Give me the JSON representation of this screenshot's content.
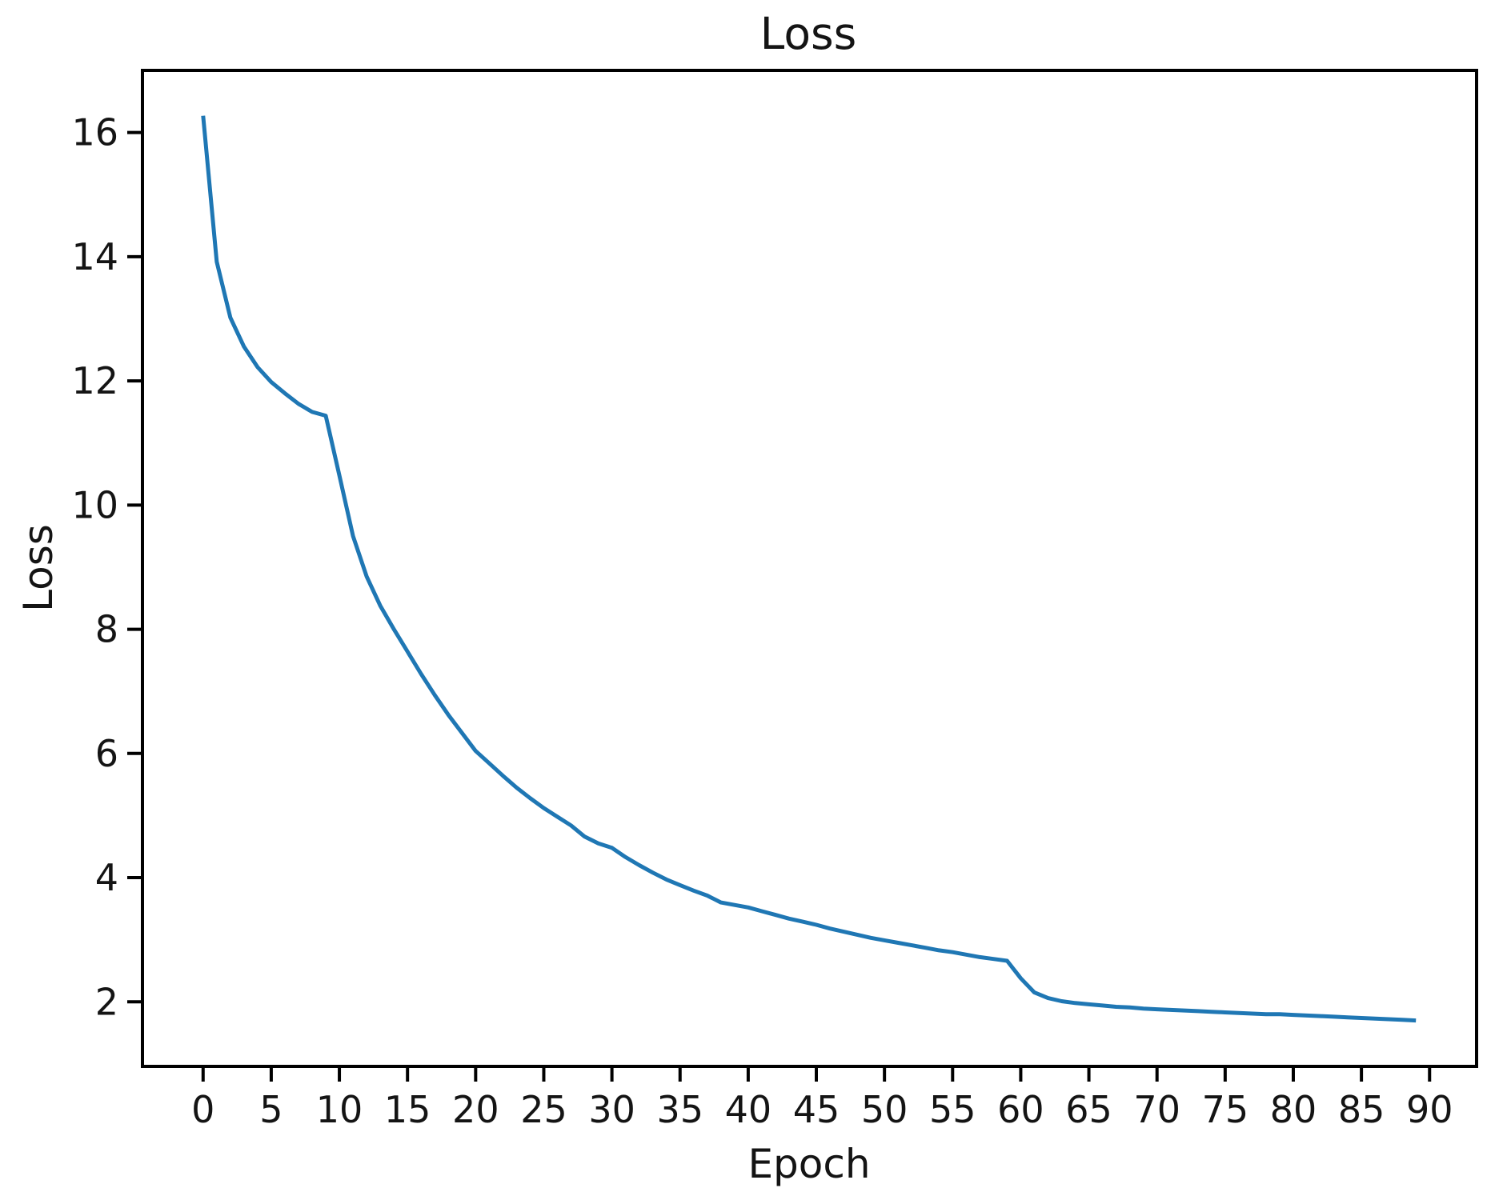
{
  "figure": {
    "background": "#ffffff",
    "text_color": "#141414",
    "spine_color": "#000000"
  },
  "chart_data": {
    "type": "line",
    "title": "Loss",
    "xlabel": "Epoch",
    "ylabel": "Loss",
    "xticks": [
      0,
      5,
      10,
      15,
      20,
      25,
      30,
      35,
      40,
      45,
      50,
      55,
      60,
      65,
      70,
      75,
      80,
      85,
      90
    ],
    "yticks": [
      2,
      4,
      6,
      8,
      10,
      12,
      14,
      16
    ],
    "xlim": [
      -4.45,
      93.45
    ],
    "ylim": [
      0.96,
      17.0
    ],
    "grid": false,
    "legend": "none",
    "series": [
      {
        "name": "Loss",
        "color": "#1f77b4",
        "x": [
          0,
          1,
          2,
          3,
          4,
          5,
          6,
          7,
          8,
          9,
          10,
          11,
          12,
          13,
          14,
          15,
          16,
          17,
          18,
          19,
          20,
          21,
          22,
          23,
          24,
          25,
          26,
          27,
          28,
          29,
          30,
          31,
          32,
          33,
          34,
          35,
          36,
          37,
          38,
          39,
          40,
          41,
          42,
          43,
          44,
          45,
          46,
          47,
          48,
          49,
          50,
          51,
          52,
          53,
          54,
          55,
          56,
          57,
          58,
          59,
          60,
          61,
          62,
          63,
          64,
          65,
          66,
          67,
          68,
          69,
          70,
          71,
          72,
          73,
          74,
          75,
          76,
          77,
          78,
          79,
          80,
          81,
          82,
          83,
          84,
          85,
          86,
          87,
          88,
          89
        ],
        "y": [
          16.27,
          13.92,
          13.02,
          12.55,
          12.22,
          11.98,
          11.8,
          11.63,
          11.5,
          11.44,
          10.48,
          9.5,
          8.85,
          8.38,
          8.0,
          7.64,
          7.28,
          6.94,
          6.62,
          6.33,
          6.04,
          5.84,
          5.64,
          5.45,
          5.28,
          5.12,
          4.98,
          4.84,
          4.66,
          4.55,
          4.48,
          4.33,
          4.2,
          4.08,
          3.97,
          3.88,
          3.79,
          3.71,
          3.6,
          3.56,
          3.52,
          3.46,
          3.4,
          3.34,
          3.29,
          3.24,
          3.18,
          3.13,
          3.08,
          3.03,
          2.99,
          2.95,
          2.91,
          2.87,
          2.83,
          2.8,
          2.76,
          2.72,
          2.69,
          2.66,
          2.38,
          2.15,
          2.06,
          2.01,
          1.98,
          1.96,
          1.94,
          1.92,
          1.91,
          1.89,
          1.88,
          1.87,
          1.86,
          1.85,
          1.84,
          1.83,
          1.82,
          1.81,
          1.8,
          1.8,
          1.79,
          1.78,
          1.77,
          1.76,
          1.75,
          1.74,
          1.73,
          1.72,
          1.71,
          1.7
        ]
      }
    ]
  }
}
